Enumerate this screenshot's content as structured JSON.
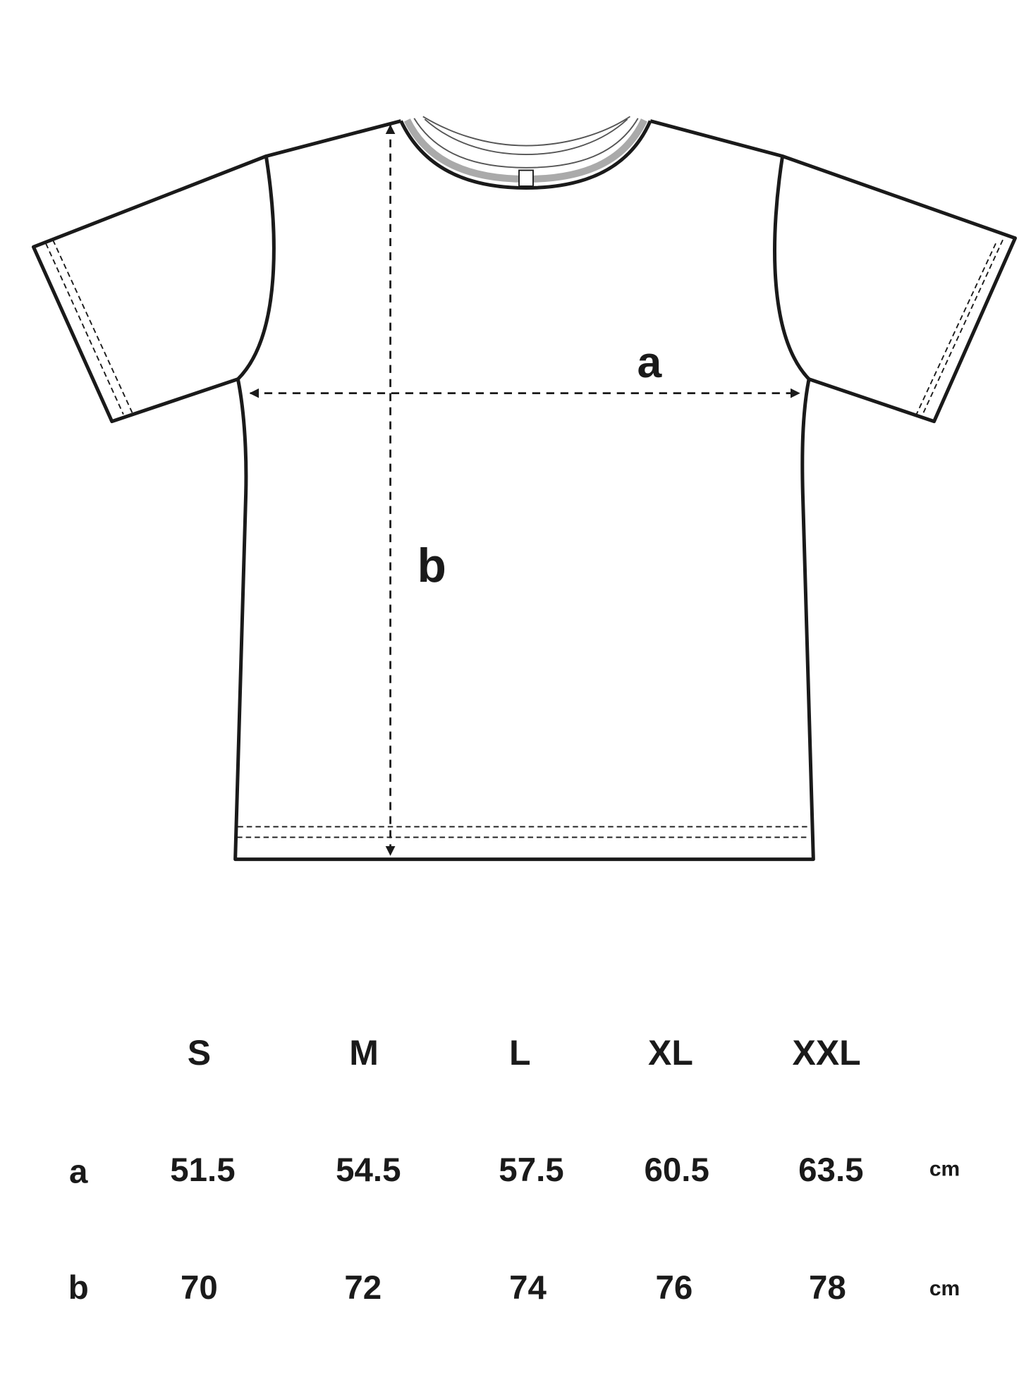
{
  "diagram": {
    "measure_labels": {
      "a": "a",
      "b": "b"
    },
    "line_color": "#1a1a1a"
  },
  "size_table": {
    "sizes": [
      "S",
      "M",
      "L",
      "XL",
      "XXL"
    ],
    "rows": [
      {
        "label": "a",
        "values": [
          "51.5",
          "54.5",
          "57.5",
          "60.5",
          "63.5"
        ],
        "unit": "cm"
      },
      {
        "label": "b",
        "values": [
          "70",
          "72",
          "74",
          "76",
          "78"
        ],
        "unit": "cm"
      }
    ]
  }
}
